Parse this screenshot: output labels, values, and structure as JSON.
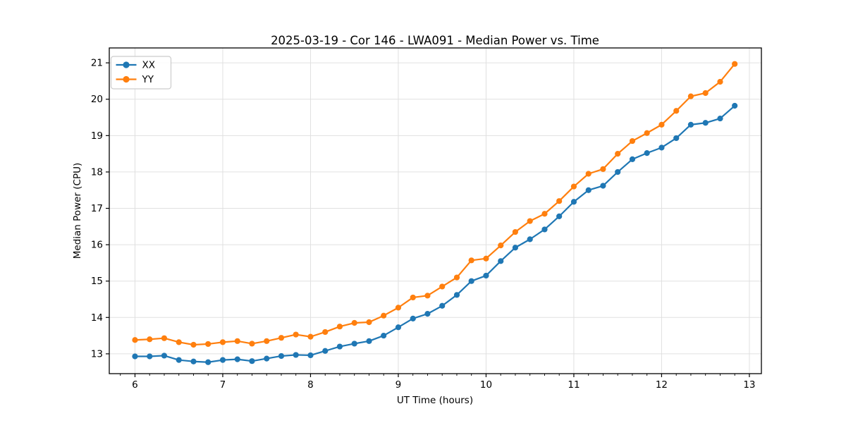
{
  "chart_data": {
    "type": "line",
    "title": "2025-03-19 - Cor 146 - LWA091 - Median Power vs. Time",
    "xlabel": "UT Time (hours)",
    "ylabel": "Median Power (CPU)",
    "xlim": [
      5.707,
      13.137
    ],
    "ylim": [
      12.455,
      21.41
    ],
    "x_ticks": [
      6,
      7,
      8,
      9,
      10,
      11,
      12,
      13
    ],
    "y_ticks": [
      13,
      14,
      15,
      16,
      17,
      18,
      19,
      20,
      21
    ],
    "x_minor_step_hours": 0.1667,
    "grid": true,
    "legend_position": "upper left",
    "x": [
      6.0,
      6.167,
      6.333,
      6.5,
      6.667,
      6.833,
      7.0,
      7.167,
      7.333,
      7.5,
      7.667,
      7.833,
      8.0,
      8.167,
      8.333,
      8.5,
      8.667,
      8.833,
      9.0,
      9.167,
      9.333,
      9.5,
      9.667,
      9.833,
      10.0,
      10.167,
      10.333,
      10.5,
      10.667,
      10.833,
      11.0,
      11.167,
      11.333,
      11.5,
      11.667,
      11.833,
      12.0,
      12.167,
      12.333,
      12.5,
      12.667,
      12.833
    ],
    "series": [
      {
        "name": "XX",
        "color": "#1f77b4",
        "values": [
          12.93,
          12.93,
          12.95,
          12.83,
          12.79,
          12.77,
          12.83,
          12.85,
          12.8,
          12.87,
          12.94,
          12.97,
          12.96,
          13.08,
          13.2,
          13.28,
          13.35,
          13.5,
          13.73,
          13.97,
          14.1,
          14.32,
          14.62,
          15.0,
          15.15,
          15.55,
          15.92,
          16.15,
          16.42,
          16.78,
          17.18,
          17.5,
          17.62,
          18.0,
          18.35,
          18.52,
          18.67,
          18.93,
          19.3,
          19.35,
          19.47,
          19.82
        ]
      },
      {
        "name": "YY",
        "color": "#ff7f0e",
        "values": [
          13.38,
          13.4,
          13.43,
          13.32,
          13.25,
          13.27,
          13.32,
          13.35,
          13.28,
          13.35,
          13.44,
          13.53,
          13.47,
          13.6,
          13.75,
          13.85,
          13.87,
          14.05,
          14.27,
          14.55,
          14.6,
          14.85,
          15.1,
          15.57,
          15.62,
          15.98,
          16.35,
          16.65,
          16.85,
          17.2,
          17.6,
          17.95,
          18.08,
          18.5,
          18.85,
          19.07,
          19.3,
          19.68,
          20.08,
          20.17,
          20.48,
          20.97
        ]
      }
    ],
    "style": {
      "grid_color": "#e0e0e0",
      "spine_color": "#000000",
      "legend_border_color": "#cccccc",
      "legend_background": "rgba(255,255,255,0.85)"
    }
  }
}
